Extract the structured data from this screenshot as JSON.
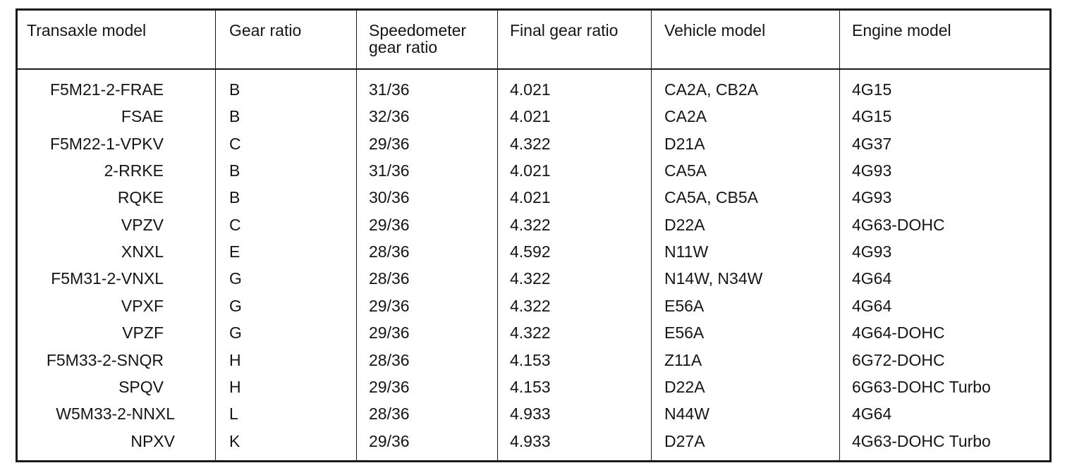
{
  "table": {
    "header": [
      "Transaxle model",
      "Gear ratio",
      "Speedometer gear ratio",
      "Final gear ratio",
      "Vehicle model",
      "Engine model"
    ],
    "rows": [
      [
        "F5M21-2-FRAE",
        "B",
        "31/36",
        "4.021",
        "CA2A, CB2A",
        "4G15"
      ],
      [
        "FSAE",
        "B",
        "32/36",
        "4.021",
        "CA2A",
        "4G15"
      ],
      [
        "F5M22-1-VPKV",
        "C",
        "29/36",
        "4.322",
        "D21A",
        "4G37"
      ],
      [
        "2-RRKE",
        "B",
        "31/36",
        "4.021",
        "CA5A",
        "4G93"
      ],
      [
        "RQKE",
        "B",
        "30/36",
        "4.021",
        "CA5A, CB5A",
        "4G93"
      ],
      [
        "VPZV",
        "C",
        "29/36",
        "4.322",
        "D22A",
        "4G63-DOHC"
      ],
      [
        "XNXL",
        "E",
        "28/36",
        "4.592",
        "N11W",
        "4G93"
      ],
      [
        "F5M31-2-VNXL",
        "G",
        "28/36",
        "4.322",
        "N14W, N34W",
        "4G64"
      ],
      [
        "VPXF",
        "G",
        "29/36",
        "4.322",
        "E56A",
        "4G64"
      ],
      [
        "VPZF",
        "G",
        "29/36",
        "4.322",
        "E56A",
        "4G64-DOHC"
      ],
      [
        "F5M33-2-SNQR",
        "H",
        "28/36",
        "4.153",
        "Z11A",
        "6G72-DOHC"
      ],
      [
        "SPQV",
        "H",
        "29/36",
        "4.153",
        "D22A",
        "6G63-DOHC Turbo"
      ],
      [
        "W5M33-2-NNXL",
        "L",
        "28/36",
        "4.933",
        "N44W",
        "4G64"
      ],
      [
        "NPXV",
        "K",
        "29/36",
        "4.933",
        "D27A",
        "4G63-DOHC Turbo"
      ]
    ]
  }
}
